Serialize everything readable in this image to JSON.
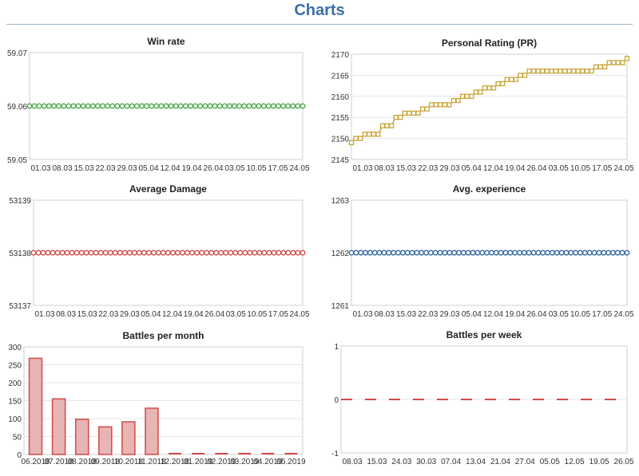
{
  "page": {
    "title": "Charts"
  },
  "chart_data": [
    {
      "type": "line",
      "title": "Win rate",
      "color": "#4aa84a",
      "marker": "circle",
      "ylim": [
        59.05,
        59.07
      ],
      "yticks": [
        "59.07",
        "59.06",
        "59.05"
      ],
      "x_ticks": [
        "01.03",
        "08.03",
        "15.03",
        "22.03",
        "29.03",
        "05.04",
        "12.04",
        "19.04",
        "26.04",
        "03.05",
        "10.05",
        "17.05",
        "24.05"
      ],
      "values": [
        59.06,
        59.06,
        59.06,
        59.06,
        59.06,
        59.06,
        59.06,
        59.06,
        59.06,
        59.06,
        59.06,
        59.06,
        59.06,
        59.06,
        59.06,
        59.06,
        59.06,
        59.06,
        59.06,
        59.06,
        59.06,
        59.06,
        59.06,
        59.06,
        59.06,
        59.06,
        59.06,
        59.06,
        59.06,
        59.06,
        59.06,
        59.06,
        59.06,
        59.06,
        59.06,
        59.06,
        59.06,
        59.06,
        59.06,
        59.06,
        59.06,
        59.06,
        59.06,
        59.06,
        59.06,
        59.06,
        59.06,
        59.06,
        59.06,
        59.06,
        59.06,
        59.06,
        59.06,
        59.06,
        59.06,
        59.06,
        59.06
      ]
    },
    {
      "type": "line",
      "title": "Personal Rating (PR)",
      "color": "#c9a43a",
      "marker": "square",
      "ylim": [
        2145,
        2170
      ],
      "yticks": [
        "2170",
        "2165",
        "2160",
        "2155",
        "2150",
        "2145"
      ],
      "x_ticks": [
        "01.03",
        "08.03",
        "15.03",
        "22.03",
        "29.03",
        "05.04",
        "12.04",
        "19.04",
        "26.04",
        "03.05",
        "10.05",
        "17.05",
        "24.05"
      ],
      "values": [
        2149,
        2150,
        2150,
        2151,
        2151,
        2151,
        2151,
        2153,
        2153,
        2153,
        2155,
        2155,
        2156,
        2156,
        2156,
        2156,
        2157,
        2157,
        2158,
        2158,
        2158,
        2158,
        2158,
        2159,
        2159,
        2160,
        2160,
        2160,
        2161,
        2161,
        2162,
        2162,
        2162,
        2163,
        2163,
        2164,
        2164,
        2164,
        2165,
        2165,
        2166,
        2166,
        2166,
        2166,
        2166,
        2166,
        2166,
        2166,
        2166,
        2166,
        2166,
        2166,
        2166,
        2166,
        2166,
        2167,
        2167,
        2167,
        2168,
        2168,
        2168,
        2168,
        2169
      ]
    },
    {
      "type": "line",
      "title": "Average Damage",
      "color": "#cf4a4a",
      "marker": "circle",
      "ylim": [
        53137,
        53139
      ],
      "yticks": [
        "53139",
        "53138",
        "53137"
      ],
      "x_ticks": [
        "01.03",
        "08.03",
        "15.03",
        "22.03",
        "29.03",
        "05.04",
        "12.04",
        "19.04",
        "26.04",
        "03.05",
        "10.05",
        "17.05",
        "24.05"
      ],
      "values": [
        53138,
        53138,
        53138,
        53138,
        53138,
        53138,
        53138,
        53138,
        53138,
        53138,
        53138,
        53138,
        53138,
        53138,
        53138,
        53138,
        53138,
        53138,
        53138,
        53138,
        53138,
        53138,
        53138,
        53138,
        53138,
        53138,
        53138,
        53138,
        53138,
        53138,
        53138,
        53138,
        53138,
        53138,
        53138,
        53138,
        53138,
        53138,
        53138,
        53138,
        53138,
        53138,
        53138,
        53138,
        53138,
        53138,
        53138,
        53138,
        53138,
        53138,
        53138,
        53138,
        53138,
        53138,
        53138,
        53138,
        53138
      ]
    },
    {
      "type": "line",
      "title": "Avg. experience",
      "color": "#2f64a6",
      "marker": "circle",
      "ylim": [
        1261,
        1263
      ],
      "yticks": [
        "1263",
        "1262",
        "1261"
      ],
      "x_ticks": [
        "01.03",
        "08.03",
        "15.03",
        "22.03",
        "29.03",
        "05.04",
        "12.04",
        "19.04",
        "26.04",
        "03.05",
        "10.05",
        "17.05",
        "24.05"
      ],
      "values": [
        1262,
        1262,
        1262,
        1262,
        1262,
        1262,
        1262,
        1262,
        1262,
        1262,
        1262,
        1262,
        1262,
        1262,
        1262,
        1262,
        1262,
        1262,
        1262,
        1262,
        1262,
        1262,
        1262,
        1262,
        1262,
        1262,
        1262,
        1262,
        1262,
        1262,
        1262,
        1262,
        1262,
        1262,
        1262,
        1262,
        1262,
        1262,
        1262,
        1262,
        1262,
        1262,
        1262,
        1262,
        1262,
        1262,
        1262,
        1262,
        1262,
        1262,
        1262,
        1262,
        1262,
        1262,
        1262,
        1262,
        1262,
        1262,
        1262,
        1262
      ]
    },
    {
      "type": "bar",
      "title": "Battles per month",
      "color": "#cf4a4a",
      "fill": "#e8b4b4",
      "ylim": [
        0,
        300
      ],
      "yticks": [
        "300",
        "250",
        "200",
        "150",
        "100",
        "50",
        "0"
      ],
      "categories": [
        "06.2018",
        "07.2018",
        "08.2018",
        "09.2018",
        "10.2018",
        "11.2018",
        "12.2018",
        "01.2019",
        "02.2019",
        "03.2019",
        "04.2019",
        "05.2019"
      ],
      "values": [
        268,
        155,
        98,
        77,
        91,
        129,
        0,
        0,
        0,
        0,
        0,
        0
      ]
    },
    {
      "type": "line",
      "title": "Battles per week",
      "color": "#cf4a4a",
      "line_style": "dashed",
      "ylim": [
        -1,
        1
      ],
      "yticks": [
        "1",
        "0",
        "-1"
      ],
      "x_ticks": [
        "08.03",
        "15.03",
        "24.03",
        "30.03",
        "07.04",
        "13.04",
        "21.04",
        "27.04",
        "05.05",
        "12.05",
        "19.05",
        "26.05"
      ],
      "values": [
        0,
        0
      ]
    }
  ]
}
